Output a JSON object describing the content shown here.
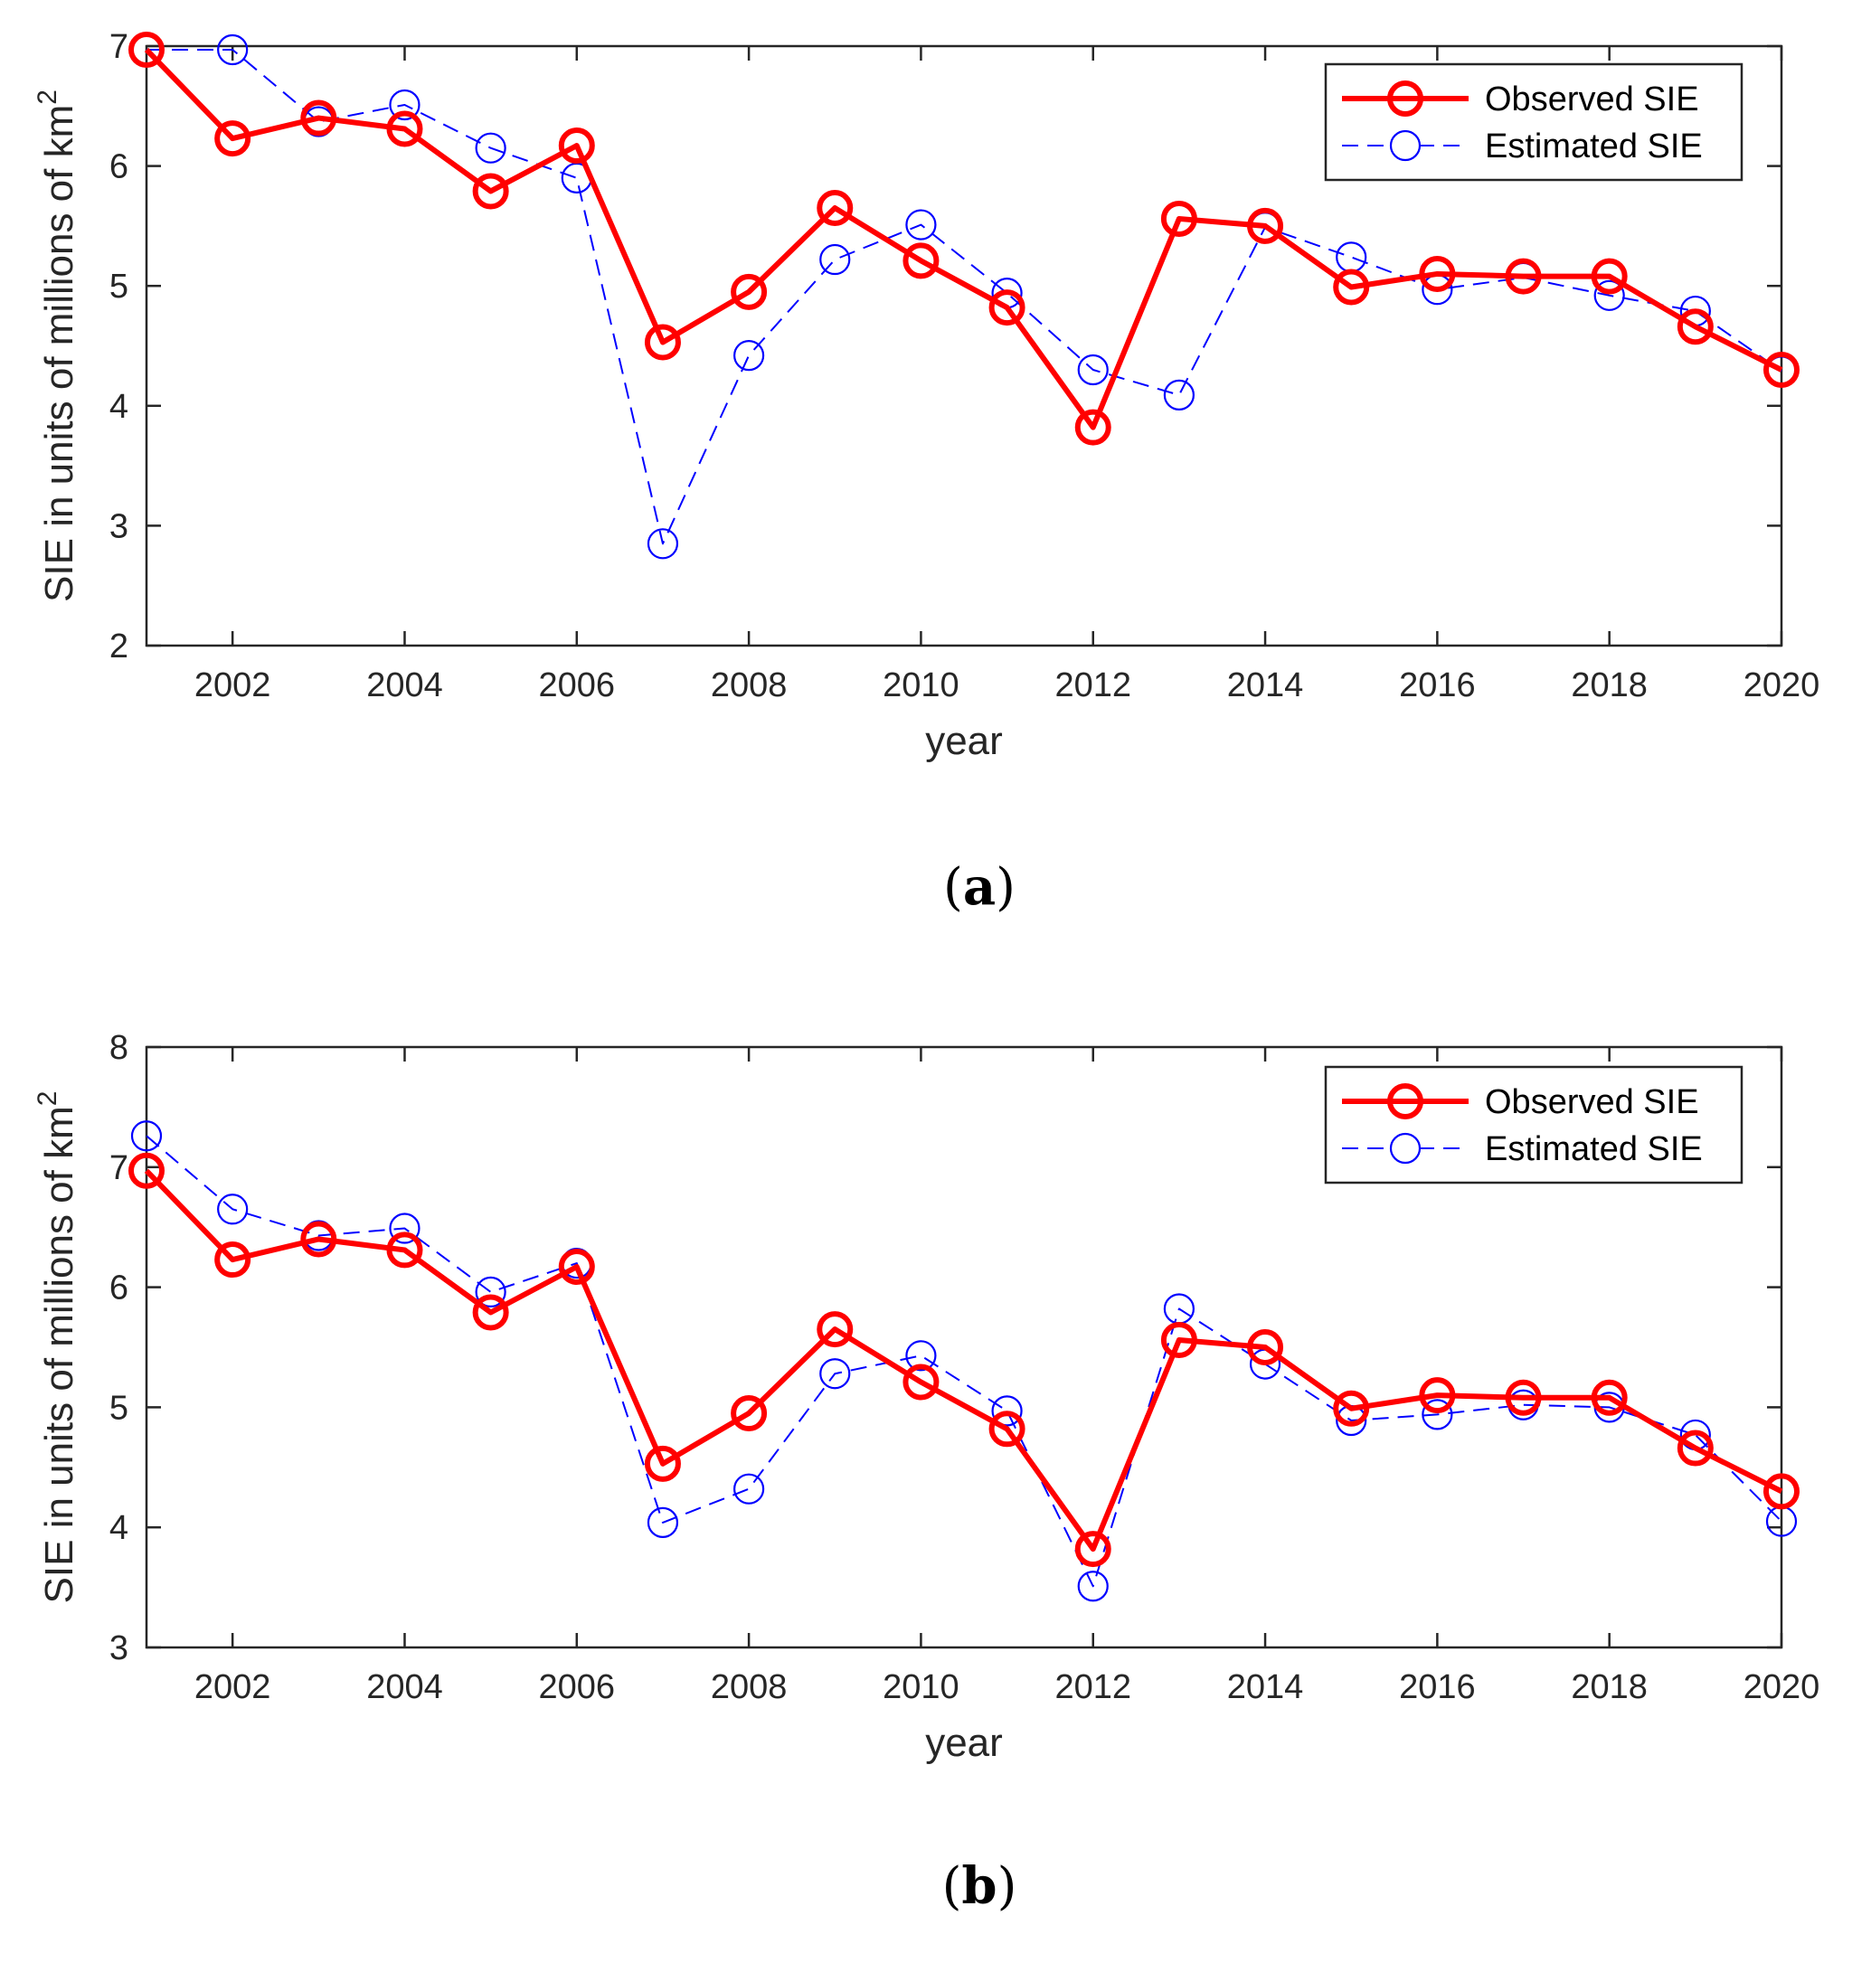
{
  "figure": {
    "colors": {
      "observed": "#ff0000",
      "estimated": "#0000ff",
      "axis": "#262626"
    }
  },
  "chart_data": [
    {
      "type": "line",
      "panel_label": "(a)",
      "panel_letter": "a",
      "xlabel": "year",
      "ylabel": "SIE in units of millions of km",
      "ylabel_superscript": "2",
      "xlim": [
        2001,
        2020
      ],
      "ylim": [
        2,
        7
      ],
      "xticks": [
        2002,
        2004,
        2006,
        2008,
        2010,
        2012,
        2014,
        2016,
        2018,
        2020
      ],
      "yticks": [
        2,
        3,
        4,
        5,
        6,
        7
      ],
      "legend_position": "top-right",
      "x": [
        2001,
        2002,
        2003,
        2004,
        2005,
        2006,
        2007,
        2008,
        2009,
        2010,
        2011,
        2012,
        2013,
        2014,
        2015,
        2016,
        2017,
        2018,
        2019,
        2020
      ],
      "series": [
        {
          "name": "Observed SIE",
          "style": "solid",
          "values": [
            6.97,
            6.23,
            6.4,
            6.31,
            5.79,
            6.17,
            4.53,
            4.95,
            5.65,
            5.21,
            4.82,
            3.82,
            5.56,
            5.5,
            4.99,
            5.1,
            5.08,
            5.08,
            4.66,
            4.3
          ]
        },
        {
          "name": "Estimated SIE",
          "style": "dashed",
          "values": [
            6.97,
            6.97,
            6.37,
            6.51,
            6.15,
            5.9,
            2.85,
            4.42,
            5.22,
            5.51,
            4.94,
            4.3,
            4.09,
            5.49,
            5.24,
            4.97,
            5.07,
            4.92,
            4.79,
            4.29
          ]
        }
      ]
    },
    {
      "type": "line",
      "panel_label": "(b)",
      "panel_letter": "b",
      "xlabel": "year",
      "ylabel": "SIE in units of millions of km",
      "ylabel_superscript": "2",
      "xlim": [
        2001,
        2020
      ],
      "ylim": [
        3,
        8
      ],
      "xticks": [
        2002,
        2004,
        2006,
        2008,
        2010,
        2012,
        2014,
        2016,
        2018,
        2020
      ],
      "yticks": [
        3,
        4,
        5,
        6,
        7,
        8
      ],
      "legend_position": "top-right",
      "x": [
        2001,
        2002,
        2003,
        2004,
        2005,
        2006,
        2007,
        2008,
        2009,
        2010,
        2011,
        2012,
        2013,
        2014,
        2015,
        2016,
        2017,
        2018,
        2019,
        2020
      ],
      "series": [
        {
          "name": "Observed SIE",
          "style": "solid",
          "values": [
            6.97,
            6.23,
            6.4,
            6.31,
            5.79,
            6.17,
            4.53,
            4.95,
            5.65,
            5.21,
            4.82,
            3.82,
            5.56,
            5.5,
            4.99,
            5.1,
            5.08,
            5.08,
            4.66,
            4.3
          ]
        },
        {
          "name": "Estimated SIE",
          "style": "dashed",
          "values": [
            7.26,
            6.65,
            6.43,
            6.49,
            5.96,
            6.2,
            4.04,
            4.32,
            5.28,
            5.43,
            4.97,
            3.51,
            5.82,
            5.36,
            4.89,
            4.94,
            5.02,
            5.0,
            4.77,
            4.05
          ]
        }
      ]
    }
  ]
}
